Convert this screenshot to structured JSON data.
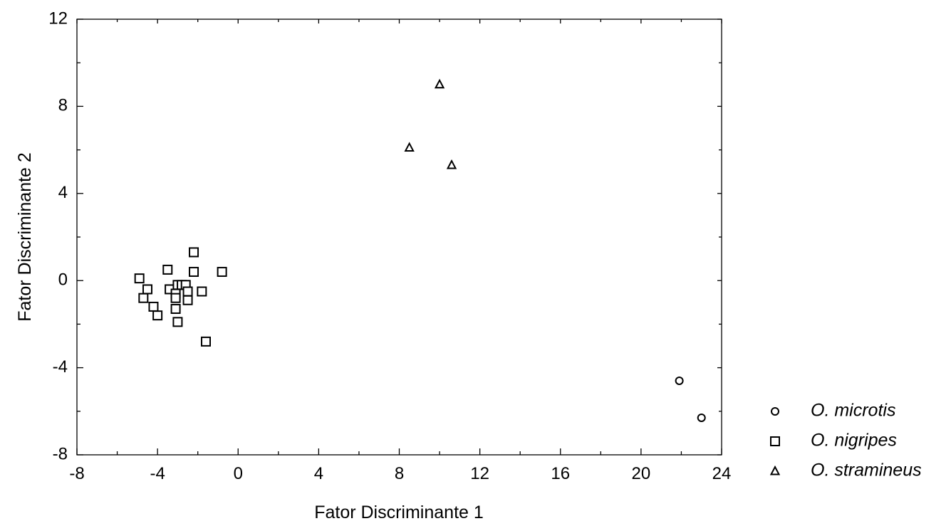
{
  "chart_data": {
    "type": "scatter",
    "title": "",
    "xlabel": "Fator Discriminante 1",
    "ylabel": "Fator Discriminante 2",
    "xlim": [
      -8,
      24
    ],
    "ylim": [
      -8,
      12
    ],
    "xticks": [
      -8,
      -4,
      0,
      4,
      8,
      12,
      16,
      20,
      24
    ],
    "yticks": [
      -8,
      -4,
      0,
      4,
      8,
      12
    ],
    "grid": false,
    "legend_position": "right",
    "series": [
      {
        "name": "O. microtis",
        "marker": "circle",
        "points": [
          [
            21.9,
            -4.6
          ],
          [
            23.0,
            -6.3
          ]
        ]
      },
      {
        "name": "O. nigripes",
        "marker": "square",
        "points": [
          [
            -4.9,
            0.1
          ],
          [
            -4.7,
            -0.8
          ],
          [
            -4.5,
            -0.4
          ],
          [
            -4.2,
            -1.2
          ],
          [
            -4.0,
            -1.6
          ],
          [
            -3.5,
            0.5
          ],
          [
            -3.4,
            -0.4
          ],
          [
            -3.1,
            -0.6
          ],
          [
            -3.1,
            -0.8
          ],
          [
            -3.1,
            -1.3
          ],
          [
            -3.0,
            -0.2
          ],
          [
            -3.0,
            -1.9
          ],
          [
            -2.8,
            -0.2
          ],
          [
            -2.6,
            -0.2
          ],
          [
            -2.5,
            -0.5
          ],
          [
            -2.5,
            -0.9
          ],
          [
            -2.2,
            1.3
          ],
          [
            -2.2,
            0.4
          ],
          [
            -1.8,
            -0.5
          ],
          [
            -1.6,
            -2.8
          ],
          [
            -0.8,
            0.4
          ]
        ]
      },
      {
        "name": "O. stramineus",
        "marker": "triangle",
        "points": [
          [
            8.5,
            6.1
          ],
          [
            10.0,
            9.0
          ],
          [
            10.6,
            5.3
          ]
        ]
      }
    ]
  }
}
